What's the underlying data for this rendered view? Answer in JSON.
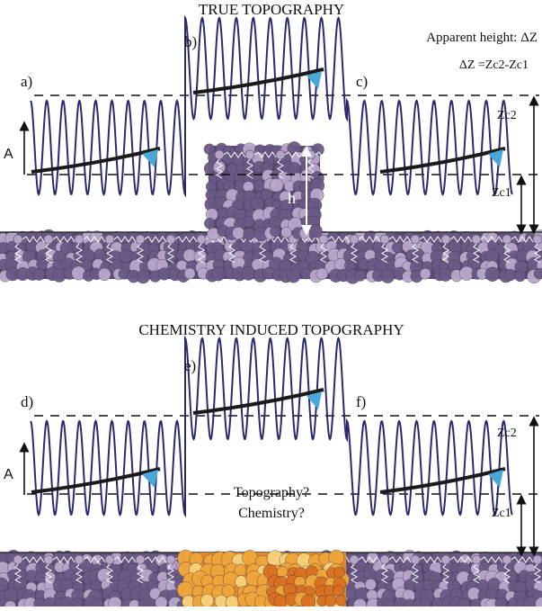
{
  "panel_top": {
    "title": "TRUE TOPOGRAPHY",
    "labels": {
      "a": "a)",
      "b": "b)",
      "c": "c)"
    },
    "amplitude_label": "A",
    "height_label": "h",
    "zc1_label": "Zc1",
    "zc2_label": "Zc2",
    "apparent_height_label": "Apparent height: ΔZ",
    "delta_z_formula": "ΔZ =Zc2-Zc1"
  },
  "panel_bottom": {
    "title": "CHEMISTRY INDUCED TOPOGRAPHY",
    "labels": {
      "d": "d)",
      "e": "e)",
      "f": "f)"
    },
    "amplitude_label": "A",
    "zc1_label": "Zc1",
    "zc2_label": "Zc2",
    "question_line1": "Topography?",
    "question_line2": "Chemistry?"
  },
  "colors": {
    "wave": "#2b2a6e",
    "cantilever": "#1a1a1a",
    "tip": "#4aa8d8",
    "substrate_atom": "#6b5a86",
    "substrate_light": "#b9a8cc",
    "spring_node": "#b7a6c9",
    "chem_atom": "#f0a63a",
    "chem_light": "#f7d27a",
    "chem_dark": "#d9701e"
  }
}
